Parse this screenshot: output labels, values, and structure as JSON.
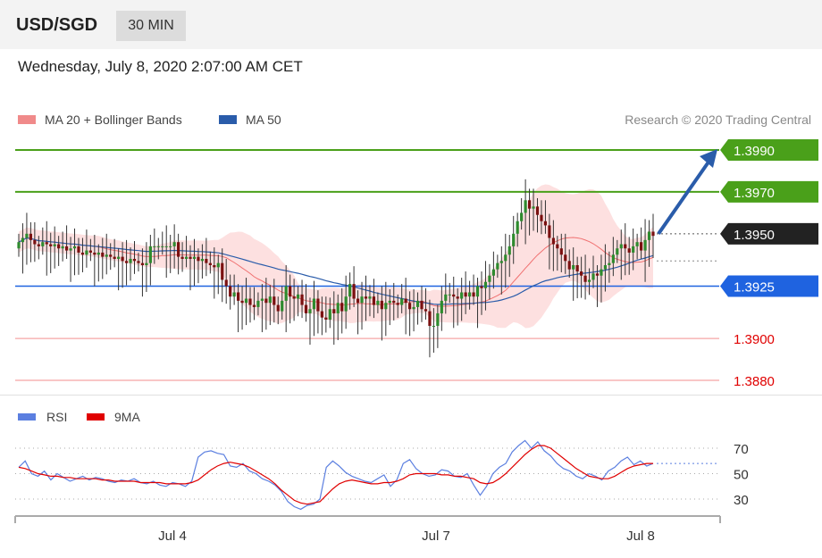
{
  "header": {
    "symbol": "USD/SGD",
    "timeframe": "30 MIN"
  },
  "datetime": "Wednesday, July 8, 2020 2:07:00 AM CET",
  "legend": {
    "bb_label": "MA 20 + Bollinger Bands",
    "ma50_label": "MA 50",
    "bb_color": "#f08a8a",
    "ma50_color": "#2a5caa"
  },
  "credit": "Research © 2020 Trading Central",
  "rsi_legend": {
    "rsi_label": "RSI",
    "ma9_label": "9MA",
    "rsi_color": "#5b7fe0",
    "ma9_color": "#e00000"
  },
  "chart_data": [
    {
      "type": "candlestick",
      "title": "USD/SGD 30 MIN",
      "ylim": [
        1.387,
        1.4005
      ],
      "levels": [
        {
          "value": 1.399,
          "label": "1.3990",
          "kind": "resistance",
          "color": "#4aa01a"
        },
        {
          "value": 1.397,
          "label": "1.3970",
          "kind": "resistance",
          "color": "#4aa01a"
        },
        {
          "value": 1.395,
          "label": "1.3950",
          "kind": "current",
          "color": "#222222"
        },
        {
          "value": 1.3925,
          "label": "1.3925",
          "kind": "pivot",
          "color": "#1f63e0"
        },
        {
          "value": 1.39,
          "label": "1.3900",
          "kind": "support",
          "color": "#e00000"
        },
        {
          "value": 1.388,
          "label": "1.3880",
          "kind": "support",
          "color": "#e00000"
        }
      ],
      "arrow": {
        "from": 1.395,
        "to": 1.399,
        "direction": "up",
        "color": "#2a5caa"
      },
      "close": [
        1.3946,
        1.3948,
        1.395,
        1.3947,
        1.3945,
        1.3944,
        1.3946,
        1.3945,
        1.3944,
        1.3945,
        1.3943,
        1.3944,
        1.3942,
        1.3943,
        1.3944,
        1.3941,
        1.394,
        1.3942,
        1.3941,
        1.394,
        1.3941,
        1.3939,
        1.394,
        1.3939,
        1.3938,
        1.3939,
        1.3937,
        1.3936,
        1.3938,
        1.3937,
        1.3936,
        1.3935,
        1.3936,
        1.3944,
        1.3944,
        1.3944,
        1.3944,
        1.3944,
        1.3944,
        1.3946,
        1.3939,
        1.3938,
        1.3939,
        1.3938,
        1.3939,
        1.3937,
        1.3938,
        1.3936,
        1.3935,
        1.3934,
        1.3936,
        1.3928,
        1.3925,
        1.392,
        1.3922,
        1.3918,
        1.3917,
        1.3919,
        1.3916,
        1.3915,
        1.3918,
        1.3919,
        1.3917,
        1.392,
        1.3916,
        1.3913,
        1.3918,
        1.3925,
        1.392,
        1.3919,
        1.3921,
        1.3916,
        1.3912,
        1.3914,
        1.3919,
        1.3913,
        1.391,
        1.3909,
        1.3914,
        1.3912,
        1.3917,
        1.3913,
        1.392,
        1.3926,
        1.3919,
        1.3917,
        1.392,
        1.3919,
        1.392,
        1.3916,
        1.3918,
        1.3914,
        1.3917,
        1.3918,
        1.3917,
        1.3916,
        1.3919,
        1.3917,
        1.3914,
        1.3915,
        1.3918,
        1.3914,
        1.3913,
        1.3906,
        1.3906,
        1.3912,
        1.3918,
        1.3921,
        1.3921,
        1.392,
        1.3919,
        1.3922,
        1.392,
        1.3922,
        1.392,
        1.3925,
        1.3924,
        1.3927,
        1.393,
        1.3933,
        1.3936,
        1.3937,
        1.394,
        1.3944,
        1.395,
        1.3956,
        1.396,
        1.3966,
        1.3962,
        1.3963,
        1.3959,
        1.3956,
        1.3954,
        1.3948,
        1.3945,
        1.3943,
        1.394,
        1.3937,
        1.3933,
        1.3935,
        1.3932,
        1.393,
        1.3927,
        1.3928,
        1.3931,
        1.393,
        1.3933,
        1.3935,
        1.3936,
        1.394,
        1.3943,
        1.3945,
        1.3943,
        1.3941,
        1.3944,
        1.3946,
        1.3942,
        1.3947,
        1.3951,
        1.3949
      ],
      "ma50_endpoints": [
        1.3945,
        1.3935
      ],
      "x_ticks": [
        "Jul 4",
        "Jul 7",
        "Jul 8"
      ]
    },
    {
      "type": "line",
      "title": "RSI",
      "ylim": [
        20,
        80
      ],
      "y_ticks": [
        70,
        50,
        30
      ],
      "x_ticks": [
        "Jul 4",
        "Jul 7",
        "Jul 8"
      ],
      "series": [
        {
          "name": "RSI",
          "values": [
            55,
            60,
            50,
            48,
            52,
            45,
            50,
            47,
            44,
            46,
            48,
            45,
            47,
            46,
            44,
            43,
            45,
            44,
            46,
            43,
            42,
            44,
            41,
            40,
            43,
            42,
            40,
            44,
            63,
            67,
            68,
            66,
            65,
            56,
            55,
            58,
            52,
            50,
            46,
            44,
            41,
            36,
            28,
            24,
            22,
            25,
            26,
            30,
            55,
            60,
            56,
            51,
            48,
            46,
            44,
            43,
            46,
            49,
            40,
            45,
            58,
            61,
            54,
            50,
            48,
            49,
            53,
            52,
            48,
            47,
            50,
            41,
            33,
            40,
            50,
            55,
            58,
            67,
            72,
            76,
            70,
            75,
            68,
            64,
            58,
            54,
            52,
            48,
            46,
            50,
            48,
            45,
            52,
            55,
            60,
            63,
            57,
            60,
            56,
            58
          ]
        },
        {
          "name": "9MA",
          "values": [
            55,
            54,
            52,
            50,
            49,
            48,
            48,
            47,
            47,
            46,
            46,
            46,
            46,
            45,
            45,
            44,
            44,
            44,
            44,
            43,
            43,
            43,
            43,
            42,
            42,
            42,
            42,
            43,
            45,
            49,
            53,
            56,
            58,
            59,
            58,
            57,
            55,
            52,
            49,
            46,
            42,
            37,
            33,
            29,
            27,
            26,
            27,
            28,
            33,
            38,
            42,
            44,
            45,
            44,
            43,
            42,
            42,
            43,
            43,
            44,
            46,
            49,
            50,
            50,
            50,
            50,
            49,
            49,
            48,
            48,
            47,
            46,
            43,
            42,
            43,
            46,
            50,
            55,
            60,
            65,
            69,
            72,
            72,
            70,
            66,
            62,
            58,
            54,
            51,
            48,
            47,
            46,
            46,
            48,
            51,
            54,
            56,
            57,
            58,
            58
          ]
        }
      ]
    }
  ]
}
